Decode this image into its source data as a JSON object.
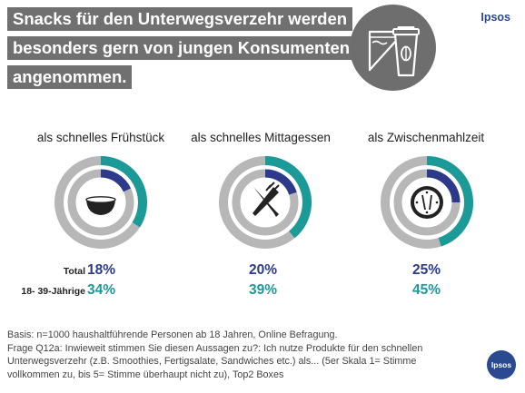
{
  "title": {
    "line1": "Snacks für den Unterwegsverzehr werden",
    "line2": "besonders gern von jungen Konsumenten",
    "line3": "angenommen."
  },
  "brand": "Ipsos",
  "badge": "Ipsos",
  "colors": {
    "total": "#2d3a8c",
    "young": "#1b9a98",
    "track": "#b7b7b7",
    "title_bg": "#707070"
  },
  "row_labels": {
    "total": "Total",
    "young": "18- 39-Jährige"
  },
  "chart_data": {
    "type": "donut",
    "categories": [
      "als schnelles Frühstück",
      "als schnelles Mittagessen",
      "als Zwischenmahlzeit"
    ],
    "icons": [
      "bowl-icon",
      "fork-knife-icon",
      "clock-icon"
    ],
    "series": [
      {
        "name": "Total",
        "values": [
          18,
          20,
          25
        ],
        "labels": [
          "18%",
          "20%",
          "25%"
        ]
      },
      {
        "name": "18- 39-Jährige",
        "values": [
          34,
          39,
          45
        ],
        "labels": [
          "34%",
          "39%",
          "45%"
        ]
      }
    ],
    "ylim": [
      0,
      100
    ]
  },
  "footnote": {
    "line1": "Basis:  n=1000 haushaltführende Personen ab 18 Jahren, Online Befragung.",
    "line2": "Frage Q12a: Inwieweit stimmen Sie diesen Aussagen zu?: Ich nutze Produkte für den schnellen",
    "line3": "Unterwegsverzehr (z.B. Smoothies, Fertigsalate, Sandwiches etc.) als...  (5er Skala 1= Stimme",
    "line4": "vollkommen zu, bis 5= Stimme überhaupt nicht zu), Top2 Boxes"
  }
}
